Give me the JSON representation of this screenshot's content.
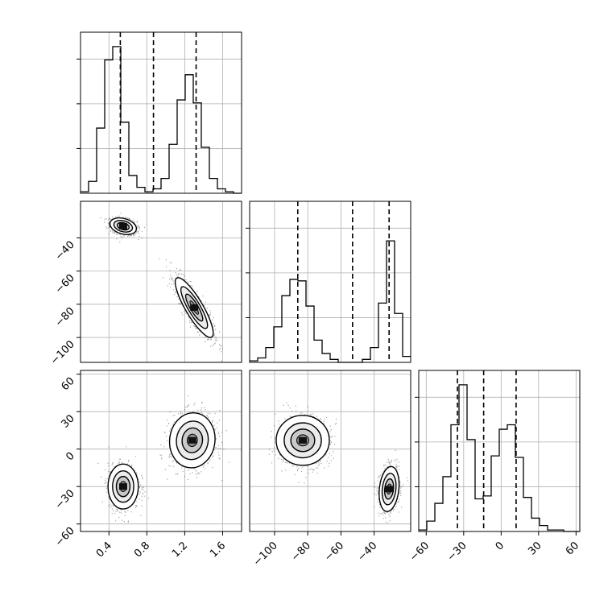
{
  "chart_data": {
    "type": "corner",
    "parameters": [
      {
        "range": [
          0.1,
          1.8
        ],
        "ticks": [
          "0.4",
          "0.8",
          "1.2",
          "1.6"
        ],
        "tick_values": [
          0.4,
          0.8,
          1.2,
          1.6
        ]
      },
      {
        "range": [
          -115,
          -18
        ],
        "ticks": [
          "−100",
          "−80",
          "−60",
          "−40"
        ],
        "tick_values": [
          -100,
          -80,
          -60,
          -40
        ]
      },
      {
        "range": [
          -66,
          63
        ],
        "ticks": [
          "−60",
          "−30",
          "0",
          "30",
          "60"
        ],
        "tick_values": [
          -60,
          -30,
          0,
          30,
          60
        ]
      }
    ],
    "histograms": [
      {
        "param": 0,
        "bin_edges": [
          0.1,
          0.185,
          0.27,
          0.355,
          0.44,
          0.525,
          0.61,
          0.695,
          0.78,
          0.865,
          0.95,
          1.035,
          1.12,
          1.205,
          1.29,
          1.375,
          1.46,
          1.545,
          1.63,
          1.715,
          1.8
        ],
        "counts": [
          0.01,
          0.08,
          0.44,
          0.9,
          0.99,
          0.48,
          0.12,
          0.04,
          0.01,
          0.03,
          0.1,
          0.33,
          0.63,
          0.8,
          0.61,
          0.31,
          0.1,
          0.03,
          0.01,
          0
        ],
        "quantiles": [
          0.52,
          0.87,
          1.32
        ]
      },
      {
        "param": 1,
        "bin_edges": [
          -115,
          -110.15,
          -105.3,
          -100.45,
          -95.6,
          -90.75,
          -85.9,
          -81.05,
          -76.2,
          -71.35,
          -66.5,
          -61.65,
          -56.8,
          -51.95,
          -47.1,
          -42.25,
          -37.4,
          -32.55,
          -27.7,
          -22.85,
          -18
        ],
        "counts": [
          0.01,
          0.03,
          0.1,
          0.24,
          0.45,
          0.56,
          0.55,
          0.38,
          0.15,
          0.06,
          0.02,
          0,
          0,
          0,
          0.02,
          0.1,
          0.4,
          0.82,
          0.33,
          0.04
        ],
        "quantiles": [
          -86,
          -53,
          -31
        ]
      },
      {
        "param": 2,
        "bin_edges": [
          -66,
          -59.55,
          -53.1,
          -46.65,
          -40.2,
          -33.75,
          -27.3,
          -20.85,
          -14.4,
          -7.95,
          -1.5,
          4.95,
          11.4,
          17.85,
          24.3,
          30.75,
          37.2,
          43.65,
          50.1,
          56.55,
          63
        ],
        "counts": [
          0.01,
          0.07,
          0.19,
          0.37,
          0.72,
          0.99,
          0.62,
          0.22,
          0.24,
          0.51,
          0.69,
          0.72,
          0.5,
          0.23,
          0.09,
          0.04,
          0.01,
          0.01,
          0,
          0
        ],
        "quantiles": [
          -35,
          -14,
          12
        ]
      }
    ],
    "scatter_panels": [
      {
        "x_param": 0,
        "y_param": 1,
        "clusters": [
          {
            "center": [
              0.55,
              -33
            ],
            "sd": [
              0.07,
              2.5
            ],
            "rho": -0.3
          },
          {
            "center": [
              1.3,
              -82
            ],
            "sd": [
              0.1,
              9
            ],
            "rho": -0.85
          }
        ]
      },
      {
        "x_param": 0,
        "y_param": 2,
        "clusters": [
          {
            "center": [
              0.55,
              -30
            ],
            "sd": [
              0.08,
              9
            ],
            "rho": 0.0
          },
          {
            "center": [
              1.28,
              7
            ],
            "sd": [
              0.12,
              11
            ],
            "rho": 0.05
          }
        ]
      },
      {
        "x_param": 1,
        "y_param": 2,
        "clusters": [
          {
            "center": [
              -83,
              7
            ],
            "sd": [
              8,
              10
            ],
            "rho": 0.0
          },
          {
            "center": [
              -31,
              -32
            ],
            "sd": [
              3,
              9
            ],
            "rho": 0.2
          }
        ]
      }
    ],
    "grid": true,
    "legend": "none"
  }
}
